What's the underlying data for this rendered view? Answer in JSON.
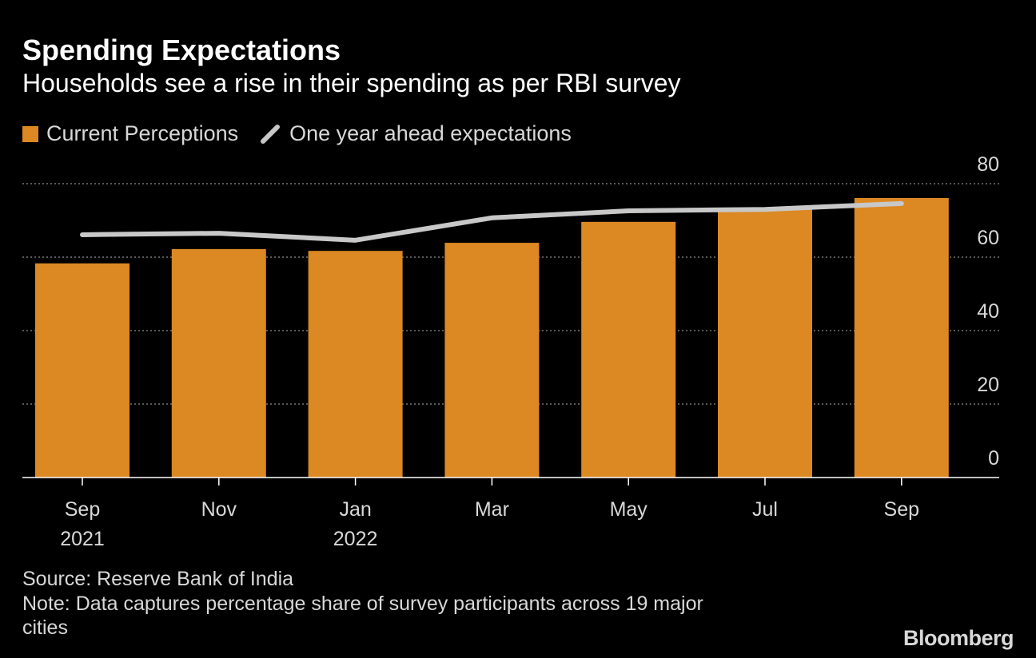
{
  "chart_data": {
    "type": "bar",
    "title": "Spending Expectations",
    "subtitle": "Households see a rise in their spending as per RBI survey",
    "categories": [
      [
        "Sep",
        "2021"
      ],
      [
        "Nov",
        ""
      ],
      [
        "Jan",
        "2022"
      ],
      [
        "Mar",
        ""
      ],
      [
        "May",
        ""
      ],
      [
        "Jul",
        ""
      ],
      [
        "Sep",
        ""
      ]
    ],
    "series": [
      {
        "name": "Current Perceptions",
        "type": "bar",
        "color": "#dc8823",
        "values": [
          58.3,
          62.2,
          61.7,
          63.9,
          69.6,
          73.0,
          76.1
        ]
      },
      {
        "name": "One year ahead expectations",
        "type": "line",
        "color": "#c8c8c8",
        "values": [
          66.1,
          66.5,
          64.6,
          70.7,
          72.6,
          73.0,
          74.6
        ]
      }
    ],
    "ylim": [
      0,
      80
    ],
    "yticks": [
      "0",
      "20",
      "40",
      "60",
      "80"
    ],
    "ytick_values": [
      0,
      20,
      40,
      60,
      80
    ],
    "grid": true,
    "legend_position": "top-left",
    "xlabel": "",
    "ylabel": ""
  },
  "footer": {
    "source": "Source: Reserve Bank of India",
    "note_line1": "Note: Data captures percentage share of survey participants across 19 major",
    "note_line2": "cities",
    "logo": "Bloomberg"
  }
}
